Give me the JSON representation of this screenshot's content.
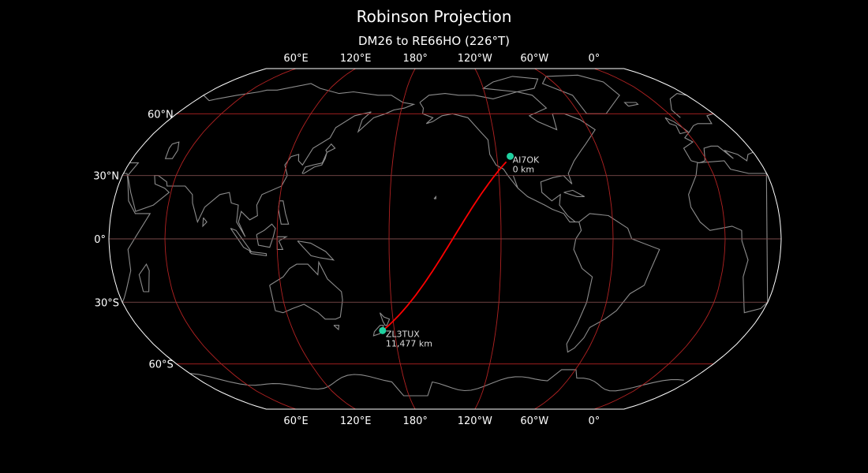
{
  "title": "Robinson Projection",
  "subtitle": "DM26 to RE66HO (226°T)",
  "map": {
    "projection": "robinson",
    "central_longitude": -150,
    "colors": {
      "background": "#000000",
      "coastline": "#8c8c8c",
      "gridline": "#b22222",
      "path": "#ff0000",
      "marker": "#1fd1a0",
      "outline": "#ffffff"
    },
    "lon_ticks": [
      {
        "lon": 60,
        "label": "60°E"
      },
      {
        "lon": 120,
        "label": "120°E"
      },
      {
        "lon": 180,
        "label": "180°"
      },
      {
        "lon": -120,
        "label": "120°W"
      },
      {
        "lon": -60,
        "label": "60°W"
      },
      {
        "lon": 0,
        "label": "0°"
      }
    ],
    "lat_ticks": [
      {
        "lat": 60,
        "label": "60°N"
      },
      {
        "lat": 30,
        "label": "30°N"
      },
      {
        "lat": 0,
        "label": "0°"
      },
      {
        "lat": -30,
        "label": "30°S"
      },
      {
        "lat": -60,
        "label": "60°S"
      }
    ],
    "stations": [
      {
        "call": "AI7OK",
        "distance": "0 km",
        "lat": 36.5,
        "lon": -115
      },
      {
        "call": "ZL3TUX",
        "distance": "11,477 km",
        "lat": -43.5,
        "lon": 173
      }
    ]
  }
}
